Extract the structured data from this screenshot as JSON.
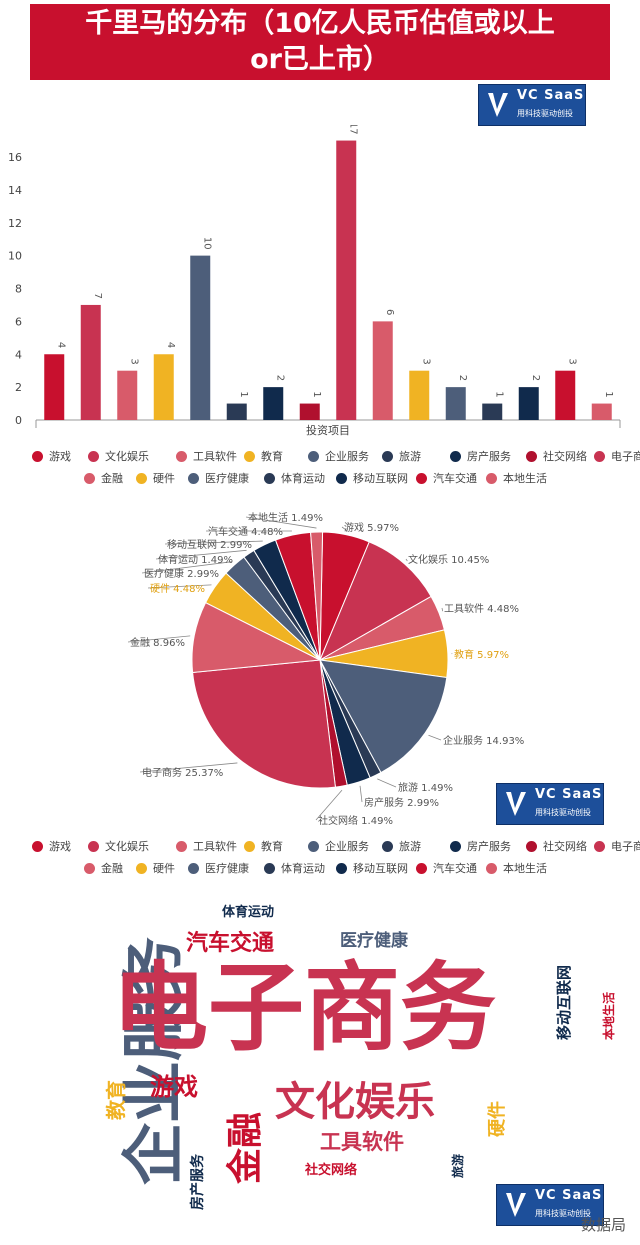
{
  "title": {
    "line1": "千里马的分布（10亿人民币估值或以上",
    "line2": "or已上市）"
  },
  "logo": {
    "name": "VC SaaS",
    "tagline": "用科技驱动创投"
  },
  "colors": {
    "red": "#c8102e",
    "crimson": "#c83351",
    "pink": "#d85b6a",
    "gold": "#f0b323",
    "slate": "#4d5e7a",
    "navy": "#102a4c"
  },
  "chart_data": [
    {
      "type": "bar",
      "xlabel": "投资项目",
      "ylabel": "",
      "ylim": [
        0,
        16
      ],
      "yticks": [
        0,
        2,
        4,
        6,
        8,
        10,
        12,
        14,
        16
      ],
      "categories": [
        "游戏",
        "文化娱乐",
        "工具软件",
        "教育",
        "企业服务",
        "旅游",
        "房产服务",
        "社交网络",
        "电子商务",
        "金融",
        "硬件",
        "医疗健康",
        "体育运动",
        "移动互联网",
        "汽车交通",
        "本地生活"
      ],
      "values": [
        4,
        7,
        3,
        4,
        10,
        1,
        2,
        1,
        17,
        6,
        3,
        2,
        1,
        2,
        3,
        1
      ],
      "colors": [
        "#c8102e",
        "#c83351",
        "#d85b6a",
        "#f0b323",
        "#4d5e7a",
        "#2a3a55",
        "#102a4c",
        "#b0102e",
        "#c83351",
        "#d85b6a",
        "#f0b323",
        "#4d5e7a",
        "#2a3a55",
        "#102a4c",
        "#c8102e",
        "#d85b6a"
      ]
    },
    {
      "type": "pie",
      "slices": [
        {
          "label": "游戏",
          "value": 5.97,
          "text": "游戏 5.97%"
        },
        {
          "label": "文化娱乐",
          "value": 10.45,
          "text": "文化娱乐 10.45%"
        },
        {
          "label": "工具软件",
          "value": 4.48,
          "text": "工具软件 4.48%"
        },
        {
          "label": "教育",
          "value": 5.97,
          "text": "教育 5.97%"
        },
        {
          "label": "企业服务",
          "value": 14.93,
          "text": "企业服务 14.93%"
        },
        {
          "label": "旅游",
          "value": 1.49,
          "text": "旅游 1.49%"
        },
        {
          "label": "房产服务",
          "value": 2.99,
          "text": "房产服务 2.99%"
        },
        {
          "label": "社交网络",
          "value": 1.49,
          "text": "社交网络 1.49%"
        },
        {
          "label": "电子商务",
          "value": 25.37,
          "text": "电子商务 25.37%"
        },
        {
          "label": "金融",
          "value": 8.96,
          "text": "金融 8.96%"
        },
        {
          "label": "硬件",
          "value": 4.48,
          "text": "硬件 4.48%"
        },
        {
          "label": "医疗健康",
          "value": 2.99,
          "text": "医疗健康 2.99%"
        },
        {
          "label": "体育运动",
          "value": 1.49,
          "text": "体育运动 1.49%"
        },
        {
          "label": "移动互联网",
          "value": 2.99,
          "text": "移动互联网 2.99%"
        },
        {
          "label": "汽车交通",
          "value": 4.48,
          "text": "汽车交通 4.48%"
        },
        {
          "label": "本地生活",
          "value": 1.49,
          "text": "本地生活 1.49%"
        }
      ]
    }
  ],
  "legend_items": [
    "游戏",
    "文化娱乐",
    "工具软件",
    "教育",
    "企业服务",
    "旅游",
    "房产服务",
    "社交网络",
    "电子商务",
    "金融",
    "硬件",
    "医疗健康",
    "体育运动",
    "移动互联网",
    "汽车交通",
    "本地生活"
  ],
  "wordcloud": {
    "e_commerce": "电子商务",
    "enterprise": "企业服务",
    "entertainment": "文化娱乐",
    "finance": "金融",
    "games": "游戏",
    "education": "教育",
    "tools": "工具软件",
    "auto": "汽车交通",
    "health": "医疗健康",
    "sports": "体育运动",
    "mobile": "移动互联网",
    "local": "本地生活",
    "hardware": "硬件",
    "social": "社交网络",
    "realestate": "房产服务",
    "travel": "旅游"
  },
  "watermark": "数据局"
}
